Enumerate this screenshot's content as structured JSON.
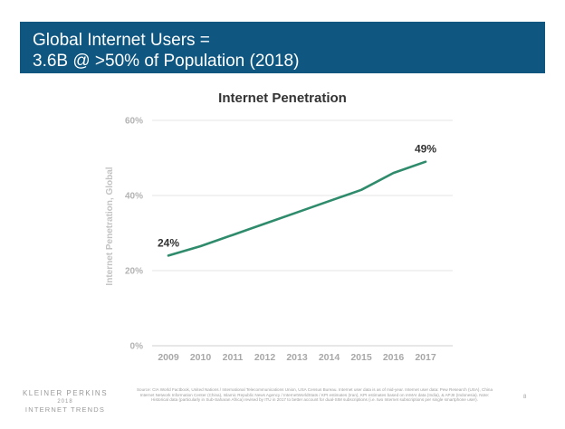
{
  "header": {
    "title_line1": "Global Internet Users =",
    "title_line2": "3.6B @ >50% of Population (2018)",
    "background": "#0f5781"
  },
  "chart_data": {
    "type": "line",
    "title": "Internet Penetration",
    "xlabel": "",
    "ylabel": "Internet Penetration, Global",
    "x": [
      "2009",
      "2010",
      "2011",
      "2012",
      "2013",
      "2014",
      "2015",
      "2016",
      "2017"
    ],
    "series": [
      {
        "values": [
          24,
          26.5,
          29.5,
          32.5,
          35.5,
          38.5,
          41.5,
          46,
          49
        ],
        "color": "#2e8b6b"
      }
    ],
    "y_ticks": [
      "0%",
      "20%",
      "40%",
      "60%"
    ],
    "ylim": [
      0,
      60
    ],
    "grid": true,
    "data_labels": [
      {
        "index": 0,
        "text": "24%"
      },
      {
        "index": 8,
        "text": "49%"
      }
    ]
  },
  "footer": {
    "brand_line1": "KLEINER PERKINS",
    "brand_line2": "2018",
    "brand_line3": "INTERNET TRENDS",
    "source_text": "Source: CIA World Factbook, United Nations / International Telecommunications Union, USA Census Bureau. Internet user data is as of mid-year. Internet user data: Pew Research (USA), China Internet Network Information Center (China), Islamic Republic News Agency / InternetWorldStats / KPI estimates (Iran), KPI estimates based on IAMAI data (India), & APJII (Indonesia). Note: Historical data (particularly in Sub-Saharan Africa) revised by ITU in 2017 to better account for dual-SIM subscriptions (i.e. two Internet subscriptions per single smartphone user).",
    "page_number": "8"
  }
}
